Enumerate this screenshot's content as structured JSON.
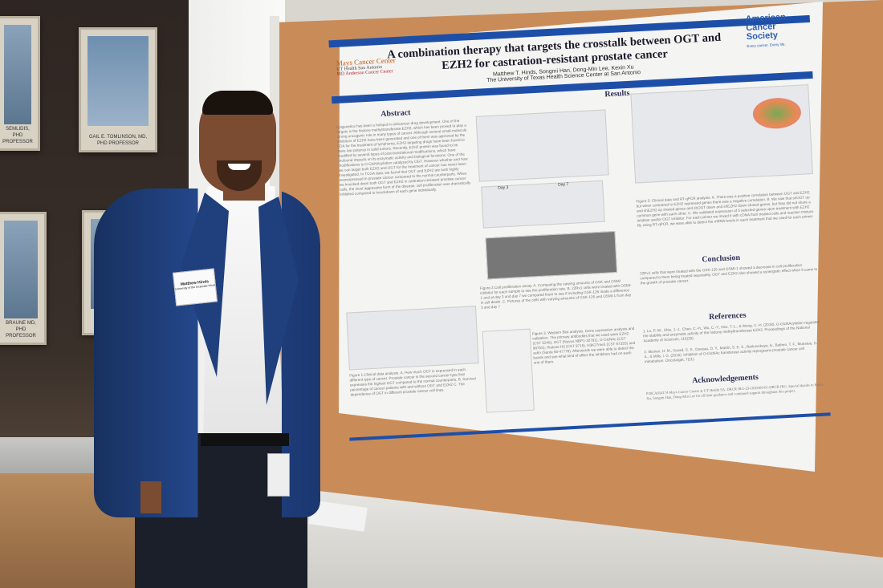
{
  "scene": {
    "portraits": [
      {
        "caption": "SEMLIDIS, PHD\nPROFESSOR"
      },
      {
        "caption": "GAIL E. TOMLINSON, MD, PHD\nPROFESSOR"
      },
      {
        "caption": ""
      },
      {
        "caption": "BRAUNE MD, PHD\nPROFESSOR"
      },
      {
        "caption": ""
      }
    ],
    "name_tag": "Matthew Hinds",
    "name_tag_sub": "University of the Incarnate Word",
    "colors": {
      "cork": "#c98c58",
      "blazer": "#1f3f7d",
      "poster_blue": "#1e4fa8"
    }
  },
  "poster": {
    "title_line1": "A combination therapy that targets the crosstalk between OGT and",
    "title_line2": "EZH2 for castration-resistant prostate cancer",
    "authors": "Matthew T. Hinds, Songmi Han, Dong-Min Lee, Kexin Xu",
    "affiliation": "The University of Texas Health Science Center at San Antonio",
    "logo_left": "Mays Cancer Center",
    "logo_left_sub1": "UT Health San Antonio",
    "logo_left_sub2": "MD Anderson Cancer Center",
    "logo_right": "American Cancer Society",
    "logo_right_tagline": "Every cancer. Every life.",
    "sections": {
      "abstract": "Abstract",
      "results": "Results",
      "conclusion": "Conclusion",
      "references": "References",
      "acknowledgements": "Acknowledgements"
    },
    "abstract_text": "Epigenetics has been a hotspot in anticancer drug development. One of the targets is the histone methyltransferase EZH2, which has been proved to play a strong oncogenic role in many types of cancer. Although several small-molecule inhibitors of EZH2 have been generated and one of them was approved by the FDA for the treatment of lymphoma, EZH2-targeting drugs have been found to have low potency in solid tumors. Recently, EZH2 protein was found to be modified by several types of post-translational modifications, which have profound impacts on its enzymatic activity and biological functions. One of the modifications is O-GlcNAcylation catalyzed by OGT. However whether and how we can target both EZH2 and OGT for the treatment of cancer has never been investigated. In TCGA data, we found that OGT and EZH2 are both highly overexpressed in prostate cancer compared to the normal counterparts. When we knocked down both OGT and EZH2 in castration-resistant prostate cancer cells, the most aggressive form of the disease, cell proliferation was dramatically inhibited compared to knockdown of each gene individually.",
    "fig1_caption": "Figure 1.Clinical data analysis. A. How much OGT is expressed in each different type of cancer. Prostate cancer is the second cancer type that expresses the highest OGT compared to the normal counterparts. B. Survival percentage of cancer patients with and without OGT and EZH2 C. The dependence of OGT in different prostate cancer cell lines.",
    "fig2_caption": "Figure 2.Cell proliferation assay. A. Comparing the varying amounts of GSK and OSMI inhibitor for each sample to see the proliferation rate. B. 22Rv1 cells were treated with OSMI-1 and at day 3 and day 7 we compared them to see if including GSK-126 made a difference in cell death. C. Pictures of the cells with varying amounts of GSK-126 and OSMI-1 from day 3 and day 7",
    "fig2_labels": [
      "Day 3",
      "Day 7"
    ],
    "fig3w_caption": "Figure 3. Western Blot analysis. Gene expression analysis and validation. The primary antibodies that we used were EZH2 (CST 5246), OGT (Novus NBP1-32791), O-GlcNAc (CST 9875S), Histone H3 (CST 9715), H3K27me3 (CST 9733S) and actin (Santa 55-47778). Afterwards we were able to detect the bands and see what kind of effect the inhibitors had on each one of them.",
    "fig3_caption": "Figure 3: Clinical data and RT-qPCR analysis. A. There was a positive correlation between OGT and EZH2 but when compared to EZH2 repressed genes there was a negative correlation. B. We saw that shOGT up and shEZH2 up shared genes and shOGT down and shEZH2 down shared genes, but they did not share a common gene with each other. C. We validated expression of 5 selected genes upon treatment with EZH2 inhibitor and/or OGT inhibitor. For each primer we mixed it with cDNA from treated cells and reaction mixture. By using RT-qPCR, we were able to detect the mRNA levels in each treatment that we used for each primer.",
    "conclusion_text": "22Rv1 cells that were treated with the GSK-126 and OSMI-1 showed a decrease in cell proliferation compared to them being treated separately. OGT and EZH2 also showed a synergistic effect when it came to the growth of prostate cancer.",
    "references": [
      "1. Lo, P.-W., Shie, J.-J., Chen, C.-H., Wu, C.-Y., Hsu, T.-L., & Wong, C.-H. (2018). O-GlcNAcylation regulates the stability and enzymatic activity of the histone methyltransferase EZH2. Proceedings of the National Academy of Sciences, 115(28).",
      "2. Itkonen, H. M., Gorad, S. S., Duveau, D. Y., Martin, S. E. S., Barkovskaya, A., Bathen, T. F., Moestue, S. A., & Mills, I. G. (2016). Inhibition of O-GlcNAc transferase activity reprograms prostate cancer cell metabolism. Oncotarget, 7(11)."
    ],
    "acknowledgements_text": "P30CA054174 Mays Cancer Center at UT Health SA. DRCR IRG-23-1030509-01-DRCR IRG. Special thanks to Kexin Xu, Songmi Han, Dong-Min Lee for all their guidance and continued support throughout this project.",
    "panel_letters": [
      "A",
      "B",
      "C"
    ]
  }
}
